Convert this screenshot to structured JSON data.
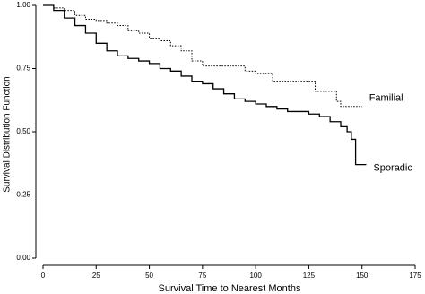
{
  "chart_data": {
    "type": "line",
    "step": true,
    "xlabel": "Survival Time to Nearest Months",
    "ylabel": "Survival Distribution Function",
    "xlim": [
      0,
      175
    ],
    "xticks": [
      0,
      25,
      50,
      75,
      100,
      125,
      150,
      175
    ],
    "ylim": [
      0,
      1
    ],
    "yticks": [
      {
        "value": 0,
        "label": "0.00"
      },
      {
        "value": 0.25,
        "label": "0.25"
      },
      {
        "value": 0.5,
        "label": "0.50"
      },
      {
        "value": 0.75,
        "label": "0.75"
      },
      {
        "value": 1,
        "label": "1.00"
      }
    ],
    "series": [
      {
        "name": "Familial",
        "color": "#000000",
        "dash": true,
        "x": [
          0,
          5,
          10,
          15,
          20,
          25,
          30,
          35,
          40,
          45,
          50,
          55,
          60,
          65,
          70,
          75,
          90,
          95,
          100,
          108,
          125,
          128,
          135,
          138,
          140,
          150
        ],
        "values": [
          1.0,
          0.99,
          0.98,
          0.96,
          0.945,
          0.94,
          0.93,
          0.92,
          0.9,
          0.89,
          0.87,
          0.86,
          0.84,
          0.82,
          0.78,
          0.76,
          0.76,
          0.74,
          0.73,
          0.7,
          0.7,
          0.66,
          0.66,
          0.62,
          0.6,
          0.6
        ]
      },
      {
        "name": "Sporadic",
        "color": "#000000",
        "dash": false,
        "x": [
          0,
          5,
          10,
          15,
          20,
          25,
          30,
          35,
          40,
          45,
          50,
          55,
          60,
          65,
          70,
          75,
          80,
          85,
          90,
          95,
          100,
          105,
          110,
          115,
          120,
          125,
          130,
          135,
          140,
          143,
          145,
          147,
          152
        ],
        "values": [
          1.0,
          0.98,
          0.95,
          0.92,
          0.89,
          0.85,
          0.82,
          0.8,
          0.79,
          0.78,
          0.77,
          0.75,
          0.74,
          0.72,
          0.7,
          0.69,
          0.67,
          0.65,
          0.63,
          0.62,
          0.61,
          0.6,
          0.59,
          0.58,
          0.58,
          0.57,
          0.56,
          0.54,
          0.52,
          0.5,
          0.47,
          0.37,
          0.37
        ]
      }
    ]
  }
}
